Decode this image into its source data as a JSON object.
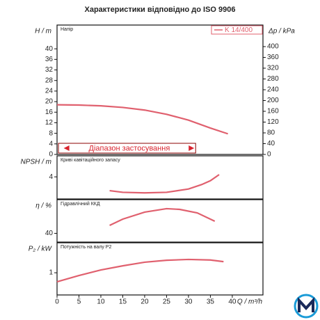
{
  "chart_data": [
    {
      "type": "line",
      "title": "Характеристики відповідно до ISO 9906",
      "annotation": "Напір",
      "y_label": "H / m",
      "y2_label": "Δp / kPa",
      "range_label": "Діапазон застосування",
      "range": [
        2,
        31
      ],
      "x": [
        0,
        5,
        10,
        15,
        20,
        25,
        30,
        35,
        39
      ],
      "xlim": [
        0,
        47
      ],
      "series": [
        {
          "name": "K 14/400",
          "color": "#e0606e",
          "values": [
            18.8,
            18.7,
            18.4,
            17.8,
            16.8,
            15.2,
            13,
            10,
            7.8
          ]
        }
      ],
      "ylim": [
        0,
        49
      ],
      "yticks": [
        0,
        4,
        8,
        12,
        16,
        20,
        24,
        28,
        32,
        36,
        40
      ],
      "y2lim": [
        0,
        480
      ],
      "y2ticks": [
        0,
        40,
        80,
        120,
        160,
        200,
        240,
        280,
        320,
        360,
        400
      ]
    },
    {
      "type": "line",
      "annotation": "Криві кавітаційного запасу",
      "y_label": "NPSH / m",
      "x": [
        12,
        15,
        20,
        25,
        30,
        33,
        35,
        37
      ],
      "xlim": [
        0,
        47
      ],
      "series": [
        {
          "color": "#e0606e",
          "values": [
            1.5,
            1.2,
            1.1,
            1.2,
            1.8,
            2.6,
            3.3,
            4.4
          ]
        }
      ],
      "ylim": [
        0,
        7.8
      ],
      "yticks": [
        4
      ]
    },
    {
      "type": "line",
      "annotation": "Гідравлічний ККД",
      "y_label": "η / %",
      "x": [
        12,
        15,
        20,
        25,
        28,
        32,
        36
      ],
      "xlim": [
        0,
        47
      ],
      "series": [
        {
          "color": "#e0606e",
          "values": [
            46.4,
            51.4,
            57,
            59.8,
            59.2,
            56.4,
            49.7
          ]
        }
      ],
      "ylim": [
        33,
        67
      ],
      "yticks": [
        40
      ]
    },
    {
      "type": "line",
      "annotation": "Потужність на валу P2",
      "y_label": "P₂ / kW",
      "x_label": "Q / m³/h",
      "x": [
        0,
        5,
        10,
        15,
        20,
        25,
        30,
        35,
        38
      ],
      "xlim": [
        0,
        47
      ],
      "xticks": [
        0,
        5,
        10,
        15,
        20,
        25,
        30,
        35,
        40
      ],
      "series": [
        {
          "color": "#e0606e",
          "values": [
            0.675,
            0.9,
            1.1,
            1.25,
            1.38,
            1.45,
            1.48,
            1.46,
            1.4
          ]
        }
      ],
      "ylim": [
        0.2,
        2.08
      ],
      "yticks": [
        1
      ]
    }
  ]
}
